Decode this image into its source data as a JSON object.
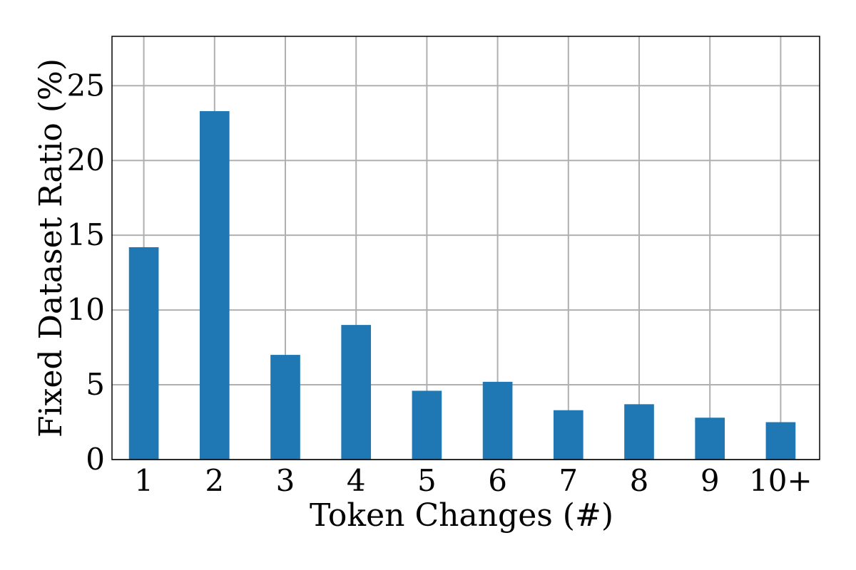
{
  "chart_data": {
    "type": "bar",
    "categories": [
      "1",
      "2",
      "3",
      "4",
      "5",
      "6",
      "7",
      "8",
      "9",
      "10+"
    ],
    "values": [
      14.2,
      23.3,
      7.0,
      9.0,
      4.6,
      5.2,
      3.3,
      3.7,
      2.8,
      2.5
    ],
    "title": "",
    "xlabel": "Token Changes (#)",
    "ylabel": "Fixed Dataset Ratio (%)",
    "ylim": [
      0,
      28.3
    ],
    "yticks": [
      0,
      5,
      10,
      15,
      20,
      25
    ],
    "grid": true,
    "bar_color": "#1f77b4"
  }
}
